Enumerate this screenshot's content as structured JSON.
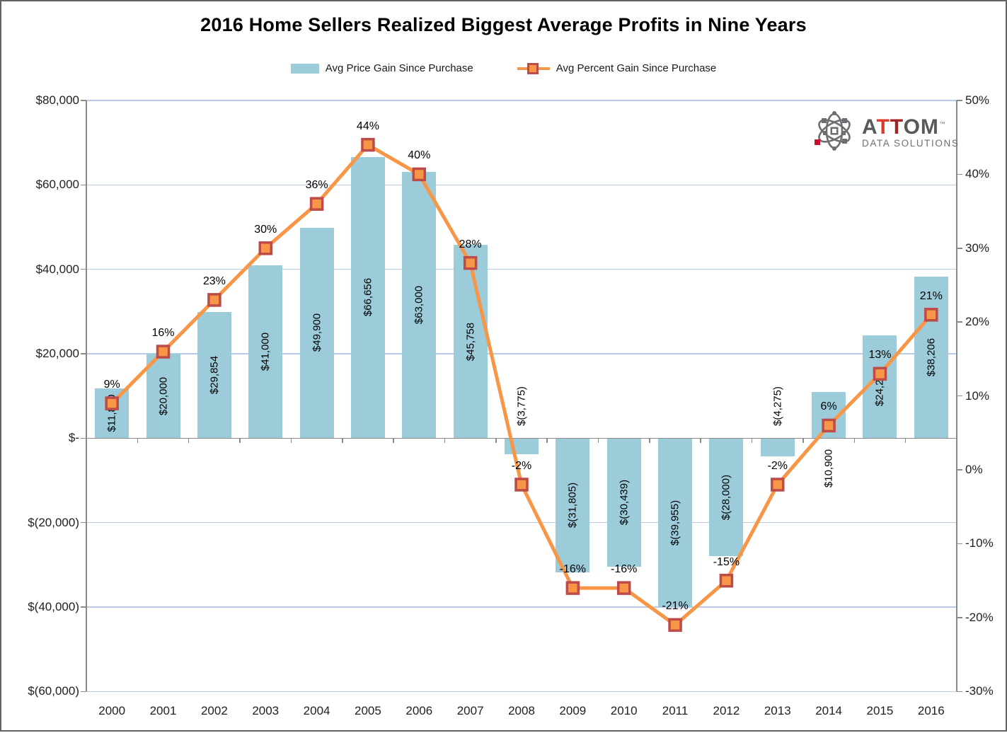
{
  "title": "2016 Home Sellers Realized Biggest Average Profits in Nine Years",
  "legend": {
    "items": [
      {
        "label": "Avg Price Gain Since Purchase",
        "swatch": "bar",
        "color": "#9CCBDA"
      },
      {
        "label": "Avg Percent Gain Since Purchase",
        "swatch": "line-marker",
        "color": "#F79646"
      }
    ],
    "position": "top"
  },
  "logo": {
    "letters": [
      "A",
      "T",
      "T",
      "OM"
    ],
    "tm": "™",
    "tagline": "DATA SOLUTIONS",
    "gray": "#6D6E71",
    "red_bright": "#E0352B",
    "red_dark": "#A32521"
  },
  "chart_data": {
    "type": "bar",
    "subtype": "bar-line combo, dual axis",
    "title": "2016 Home Sellers Realized Biggest Average Profits in Nine Years",
    "categories": [
      "2000",
      "2001",
      "2002",
      "2003",
      "2004",
      "2005",
      "2006",
      "2007",
      "2008",
      "2009",
      "2010",
      "2011",
      "2012",
      "2013",
      "2014",
      "2015",
      "2016"
    ],
    "series": [
      {
        "name": "Avg Price Gain Since Purchase",
        "type": "bar",
        "axis": "left",
        "color": "#9CCBDA",
        "values": [
          11800,
          20000,
          29854,
          41000,
          49900,
          66656,
          63000,
          45758,
          -3775,
          -31805,
          -30439,
          -39955,
          -28000,
          -4275,
          10900,
          24288,
          38206
        ],
        "labels": [
          "$11,800",
          "$20,000",
          "$29,854",
          "$41,000",
          "$49,900",
          "$66,656",
          "$63,000",
          "$45,758",
          "$(3,775)",
          "$(31,805)",
          "$(30,439)",
          "$(39,955)",
          "$(28,000)",
          "$(4,275)",
          "$10,900",
          "$24,288",
          "$38,206"
        ],
        "label_rotation": -90,
        "label_placement": [
          "inside",
          "inside",
          "inside",
          "inside",
          "inside",
          "inside",
          "inside",
          "inside",
          "above-base",
          "inside",
          "inside",
          "inside",
          "inside",
          "above-base",
          "below-base",
          "inside",
          "inside"
        ]
      },
      {
        "name": "Avg Percent Gain Since Purchase",
        "type": "line",
        "axis": "right",
        "color": "#F79646",
        "marker": "square",
        "marker_fill": "#F79646",
        "marker_border": "#BE4B48",
        "values": [
          9,
          16,
          23,
          30,
          36,
          44,
          40,
          28,
          -2,
          -16,
          -16,
          -21,
          -15,
          -2,
          6,
          13,
          21
        ],
        "labels": [
          "9%",
          "16%",
          "23%",
          "30%",
          "36%",
          "44%",
          "40%",
          "28%",
          "-2%",
          "-16%",
          "-16%",
          "-21%",
          "-15%",
          "-2%",
          "6%",
          "13%",
          "21%"
        ]
      }
    ],
    "left_axis": {
      "min": -60000,
      "max": 80000,
      "step": 20000,
      "tick_labels": [
        "$80,000",
        "$60,000",
        "$40,000",
        "$20,000",
        "$-",
        "$(20,000)",
        "$(40,000)",
        "$(60,000)"
      ]
    },
    "right_axis": {
      "min": -30,
      "max": 50,
      "step": 10,
      "tick_labels": [
        "50%",
        "40%",
        "30%",
        "20%",
        "10%",
        "0%",
        "-10%",
        "-20%",
        "-30%"
      ]
    },
    "grid": "horizontal gridlines on left-axis steps",
    "gridline_color": "#BACBE5",
    "axis_color": "#8A8A8A",
    "legend_position": "top"
  }
}
